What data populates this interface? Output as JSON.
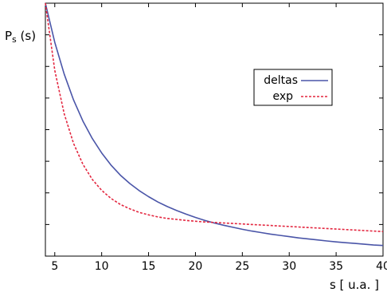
{
  "chart_data": {
    "type": "line",
    "xlabel": "s [ u.a. ]",
    "ylabel": "P",
    "ylabel_sub": "s",
    "ylabel_suffix": " (s)",
    "xlim": [
      4,
      40
    ],
    "ylim": [
      0,
      1
    ],
    "xticks": [
      5,
      10,
      15,
      20,
      25,
      30,
      35,
      40
    ],
    "yticks_count": 8,
    "grid": false,
    "legend_position": "upper-right",
    "series": [
      {
        "name": "deltas",
        "color": "#4a55a8",
        "dash": "solid",
        "x": [
          4,
          5,
          6,
          7,
          8,
          9,
          10,
          11,
          12,
          13,
          14,
          15,
          16,
          17,
          18,
          19,
          20,
          21,
          22,
          23,
          24,
          25,
          26,
          27,
          28,
          29,
          30,
          31,
          32,
          33,
          34,
          35,
          36,
          37,
          38,
          39,
          40
        ],
        "y": [
          1.0,
          0.845,
          0.72,
          0.618,
          0.534,
          0.465,
          0.408,
          0.36,
          0.32,
          0.287,
          0.259,
          0.235,
          0.214,
          0.196,
          0.18,
          0.166,
          0.153,
          0.141,
          0.131,
          0.122,
          0.114,
          0.106,
          0.099,
          0.093,
          0.087,
          0.082,
          0.077,
          0.072,
          0.068,
          0.064,
          0.06,
          0.056,
          0.053,
          0.05,
          0.047,
          0.044,
          0.042
        ]
      },
      {
        "name": "exp",
        "color": "#e3263f",
        "dash": "dashed",
        "x": [
          4,
          5,
          6,
          7,
          8,
          9,
          10,
          11,
          12,
          13,
          14,
          15,
          16,
          17,
          18,
          19,
          20,
          21,
          22,
          23,
          24,
          25,
          26,
          27,
          28,
          29,
          30,
          31,
          32,
          33,
          34,
          35,
          36,
          37,
          38,
          39,
          40
        ],
        "y": [
          1.0,
          0.734,
          0.563,
          0.446,
          0.363,
          0.303,
          0.26,
          0.228,
          0.204,
          0.187,
          0.173,
          0.163,
          0.155,
          0.149,
          0.145,
          0.141,
          0.138,
          0.135,
          0.133,
          0.131,
          0.129,
          0.127,
          0.125,
          0.123,
          0.121,
          0.119,
          0.117,
          0.115,
          0.113,
          0.111,
          0.109,
          0.107,
          0.105,
          0.103,
          0.101,
          0.099,
          0.097
        ]
      }
    ]
  }
}
